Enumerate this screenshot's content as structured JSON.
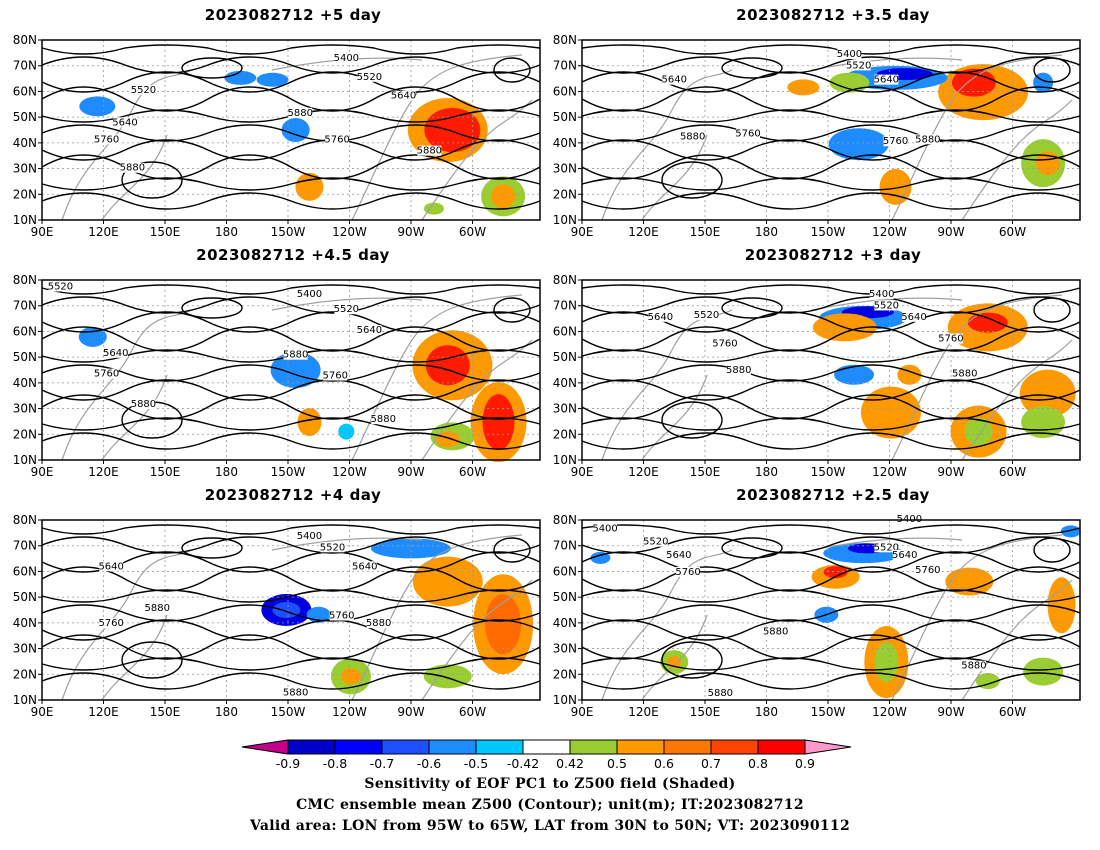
{
  "figure": {
    "panels": [
      {
        "id": "p1",
        "title": "2023082712  +5 day",
        "contour_labels": [
          "5400",
          "5520",
          "5640",
          "5520",
          "5640",
          "5760",
          "5880",
          "5760",
          "5880",
          "5880"
        ]
      },
      {
        "id": "p2",
        "title": "2023082712  +3.5 day",
        "contour_labels": [
          "5400",
          "5520",
          "5640",
          "5640",
          "5760",
          "5880",
          "5760",
          "5880"
        ]
      },
      {
        "id": "p3",
        "title": "2023082712  +4.5 day",
        "contour_labels": [
          "5520",
          "5400",
          "5520",
          "5640",
          "5640",
          "5760",
          "5880",
          "5880",
          "5760",
          "5880"
        ]
      },
      {
        "id": "p4",
        "title": "2023082712  +3 day",
        "contour_labels": [
          "5400",
          "5520",
          "5640",
          "5520",
          "5640",
          "5760",
          "5760",
          "5880",
          "5880"
        ]
      },
      {
        "id": "p5",
        "title": "2023082712  +4 day",
        "contour_labels": [
          "5400",
          "5520",
          "5640",
          "5640",
          "5880",
          "5760",
          "5760",
          "5880",
          "5880"
        ]
      },
      {
        "id": "p6",
        "title": "2023082712  +2.5 day",
        "contour_labels": [
          "5400",
          "5400",
          "5520",
          "5640",
          "5760",
          "5520",
          "5640",
          "5760",
          "5880",
          "5880",
          "5880"
        ]
      }
    ],
    "lat_ticks": [
      "80N",
      "70N",
      "60N",
      "50N",
      "40N",
      "30N",
      "20N",
      "10N"
    ],
    "lon_ticks": [
      "90E",
      "120E",
      "150E",
      "180",
      "150W",
      "120W",
      "90W",
      "60W"
    ],
    "colorbar": {
      "colors": [
        "#c2008a",
        "#0000c8",
        "#0000ff",
        "#1e50ff",
        "#1e8cff",
        "#00c8ff",
        "#ffffff",
        "#9acd32",
        "#ff9900",
        "#ff7700",
        "#ff4400",
        "#ff0000",
        "#ff99cc"
      ],
      "labels": [
        "-0.9",
        "-0.8",
        "-0.7",
        "-0.6",
        "-0.5",
        "-0.42",
        "0.42",
        "0.5",
        "0.6",
        "0.7",
        "0.8",
        "0.9"
      ]
    },
    "caption": [
      "Sensitivity of EOF PC1 to Z500 field (Shaded)",
      "CMC ensemble mean Z500 (Contour); unit(m); IT:2023082712",
      "Valid area: LON from 95W to 65W, LAT from 30N to 50N; VT: 2023090112"
    ]
  }
}
